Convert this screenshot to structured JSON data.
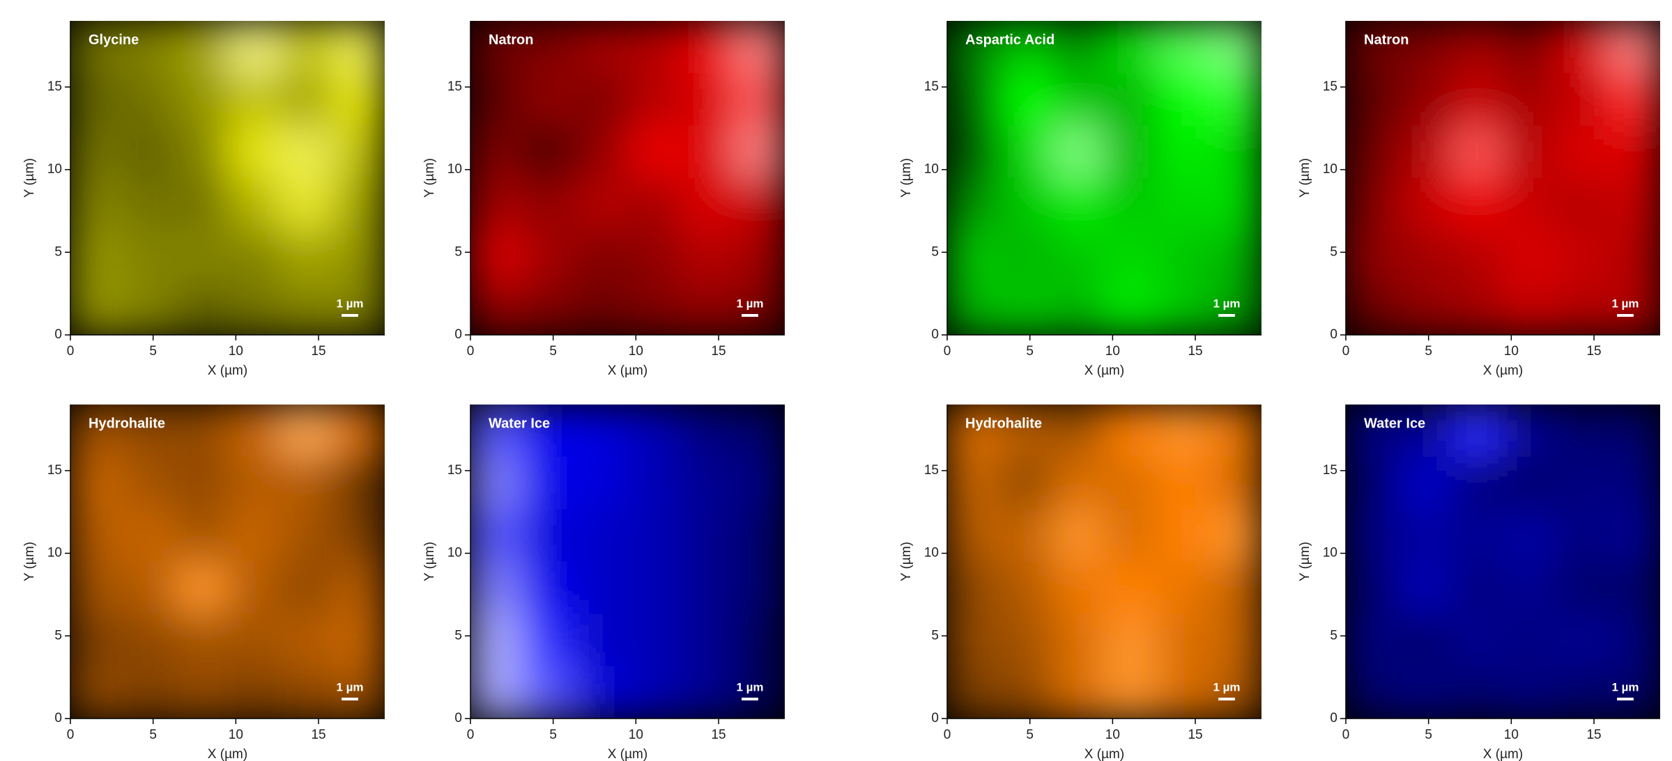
{
  "chart_data": [
    {
      "type": "heatmap",
      "title": "Glycine",
      "color": "#e6e600",
      "xlabel": "X (µm)",
      "ylabel": "Y (µm)",
      "xlim": [
        0,
        19
      ],
      "ylim": [
        0,
        19
      ],
      "xticks": [
        0,
        5,
        10,
        15
      ],
      "yticks": [
        0,
        5,
        10,
        15
      ],
      "scalebar": {
        "value": 1,
        "label": "1 µm"
      },
      "values": [
        [
          0.35,
          0.4,
          0.5,
          0.85,
          0.6,
          0.8
        ],
        [
          0.3,
          0.35,
          0.45,
          0.6,
          0.5,
          0.7
        ],
        [
          0.35,
          0.3,
          0.4,
          0.7,
          0.8,
          0.6
        ],
        [
          0.4,
          0.35,
          0.35,
          0.55,
          0.75,
          0.5
        ],
        [
          0.45,
          0.4,
          0.4,
          0.4,
          0.5,
          0.45
        ],
        [
          0.45,
          0.4,
          0.3,
          0.35,
          0.4,
          0.4
        ]
      ]
    },
    {
      "type": "heatmap",
      "title": "Natron",
      "color": "#ff0000",
      "xlabel": "X (µm)",
      "ylabel": "Y (µm)",
      "xlim": [
        0,
        19
      ],
      "ylim": [
        0,
        19
      ],
      "xticks": [
        0,
        5,
        10,
        15
      ],
      "yticks": [
        0,
        5,
        10,
        15
      ],
      "scalebar": {
        "value": 1,
        "label": "1 µm"
      },
      "values": [
        [
          0.3,
          0.35,
          0.45,
          0.5,
          0.65,
          0.85
        ],
        [
          0.25,
          0.4,
          0.35,
          0.5,
          0.6,
          0.8
        ],
        [
          0.35,
          0.2,
          0.4,
          0.65,
          0.6,
          0.85
        ],
        [
          0.45,
          0.4,
          0.5,
          0.45,
          0.6,
          0.55
        ],
        [
          0.6,
          0.45,
          0.35,
          0.4,
          0.5,
          0.45
        ],
        [
          0.4,
          0.35,
          0.3,
          0.35,
          0.4,
          0.35
        ]
      ]
    },
    {
      "type": "heatmap",
      "title": "Aspartic Acid",
      "color": "#00ff00",
      "xlabel": "X (µm)",
      "ylabel": "Y (µm)",
      "xlim": [
        0,
        19
      ],
      "ylim": [
        0,
        19
      ],
      "xticks": [
        0,
        5,
        10,
        15
      ],
      "yticks": [
        0,
        5,
        10,
        15
      ],
      "scalebar": {
        "value": 1,
        "label": "1 µm"
      },
      "values": [
        [
          0.35,
          0.55,
          0.4,
          0.6,
          0.8,
          0.85
        ],
        [
          0.3,
          0.7,
          0.55,
          0.5,
          0.7,
          0.75
        ],
        [
          0.25,
          0.6,
          0.85,
          0.5,
          0.65,
          0.6
        ],
        [
          0.4,
          0.55,
          0.65,
          0.55,
          0.6,
          0.6
        ],
        [
          0.55,
          0.5,
          0.55,
          0.6,
          0.55,
          0.5
        ],
        [
          0.5,
          0.55,
          0.5,
          0.65,
          0.55,
          0.45
        ]
      ]
    },
    {
      "type": "heatmap",
      "title": "Natron",
      "color": "#ff0000",
      "xlabel": "X (µm)",
      "ylabel": "Y (µm)",
      "xlim": [
        0,
        19
      ],
      "ylim": [
        0,
        19
      ],
      "xticks": [
        0,
        5,
        10,
        15
      ],
      "yticks": [
        0,
        5,
        10,
        15
      ],
      "scalebar": {
        "value": 1,
        "label": "1 µm"
      },
      "values": [
        [
          0.3,
          0.35,
          0.45,
          0.35,
          0.6,
          0.85
        ],
        [
          0.25,
          0.4,
          0.55,
          0.45,
          0.55,
          0.75
        ],
        [
          0.3,
          0.5,
          0.8,
          0.5,
          0.6,
          0.6
        ],
        [
          0.35,
          0.55,
          0.65,
          0.55,
          0.5,
          0.55
        ],
        [
          0.4,
          0.45,
          0.5,
          0.6,
          0.55,
          0.5
        ],
        [
          0.3,
          0.4,
          0.45,
          0.55,
          0.5,
          0.5
        ]
      ]
    },
    {
      "type": "heatmap",
      "title": "Hydrohalite",
      "color": "#ff8000",
      "xlabel": "X (µm)",
      "ylabel": "Y (µm)",
      "xlim": [
        0,
        19
      ],
      "ylim": [
        0,
        19
      ],
      "xticks": [
        0,
        5,
        10,
        15
      ],
      "yticks": [
        0,
        5,
        10,
        15
      ],
      "scalebar": {
        "value": 1,
        "label": "1 µm"
      },
      "values": [
        [
          0.45,
          0.4,
          0.4,
          0.55,
          0.8,
          0.6
        ],
        [
          0.55,
          0.45,
          0.4,
          0.5,
          0.5,
          0.3
        ],
        [
          0.5,
          0.55,
          0.45,
          0.55,
          0.45,
          0.35
        ],
        [
          0.45,
          0.5,
          0.75,
          0.5,
          0.4,
          0.5
        ],
        [
          0.35,
          0.4,
          0.45,
          0.45,
          0.5,
          0.55
        ],
        [
          0.4,
          0.35,
          0.4,
          0.35,
          0.4,
          0.45
        ]
      ]
    },
    {
      "type": "heatmap",
      "title": "Water Ice",
      "color": "#0000ff",
      "xlabel": "X (µm)",
      "ylabel": "Y (µm)",
      "xlim": [
        0,
        19
      ],
      "ylim": [
        0,
        19
      ],
      "xticks": [
        0,
        5,
        10,
        15
      ],
      "yticks": [
        0,
        5,
        10,
        15
      ],
      "scalebar": {
        "value": 1,
        "label": "1 µm"
      },
      "values": [
        [
          0.8,
          0.65,
          0.6,
          0.5,
          0.35,
          0.3
        ],
        [
          0.85,
          0.65,
          0.6,
          0.5,
          0.4,
          0.35
        ],
        [
          0.8,
          0.6,
          0.55,
          0.5,
          0.4,
          0.3
        ],
        [
          0.85,
          0.65,
          0.55,
          0.5,
          0.4,
          0.3
        ],
        [
          0.9,
          0.75,
          0.55,
          0.5,
          0.4,
          0.25
        ],
        [
          0.9,
          0.8,
          0.6,
          0.5,
          0.4,
          0.25
        ]
      ]
    },
    {
      "type": "heatmap",
      "title": "Hydrohalite",
      "color": "#ff8000",
      "xlabel": "X (µm)",
      "ylabel": "Y (µm)",
      "xlim": [
        0,
        19
      ],
      "ylim": [
        0,
        19
      ],
      "xticks": [
        0,
        5,
        10,
        15
      ],
      "yticks": [
        0,
        5,
        10,
        15
      ],
      "scalebar": {
        "value": 1,
        "label": "1 µm"
      },
      "values": [
        [
          0.6,
          0.5,
          0.45,
          0.7,
          0.75,
          0.65
        ],
        [
          0.55,
          0.4,
          0.6,
          0.6,
          0.7,
          0.6
        ],
        [
          0.5,
          0.55,
          0.75,
          0.6,
          0.7,
          0.75
        ],
        [
          0.4,
          0.5,
          0.65,
          0.7,
          0.65,
          0.55
        ],
        [
          0.4,
          0.45,
          0.6,
          0.75,
          0.6,
          0.55
        ],
        [
          0.35,
          0.4,
          0.6,
          0.75,
          0.6,
          0.5
        ]
      ]
    },
    {
      "type": "heatmap",
      "title": "Water Ice",
      "color": "#0000ff",
      "xlabel": "X (µm)",
      "ylabel": "Y (µm)",
      "xlim": [
        0,
        19
      ],
      "ylim": [
        0,
        19
      ],
      "xticks": [
        0,
        5,
        10,
        15
      ],
      "yticks": [
        0,
        5,
        10,
        15
      ],
      "scalebar": {
        "value": 1,
        "label": "1 µm"
      },
      "values": [
        [
          0.35,
          0.4,
          0.75,
          0.4,
          0.3,
          0.3
        ],
        [
          0.3,
          0.55,
          0.35,
          0.3,
          0.35,
          0.35
        ],
        [
          0.35,
          0.45,
          0.4,
          0.45,
          0.35,
          0.4
        ],
        [
          0.3,
          0.5,
          0.35,
          0.4,
          0.3,
          0.3
        ],
        [
          0.35,
          0.3,
          0.4,
          0.35,
          0.4,
          0.35
        ],
        [
          0.3,
          0.35,
          0.3,
          0.35,
          0.3,
          0.3
        ]
      ]
    }
  ]
}
